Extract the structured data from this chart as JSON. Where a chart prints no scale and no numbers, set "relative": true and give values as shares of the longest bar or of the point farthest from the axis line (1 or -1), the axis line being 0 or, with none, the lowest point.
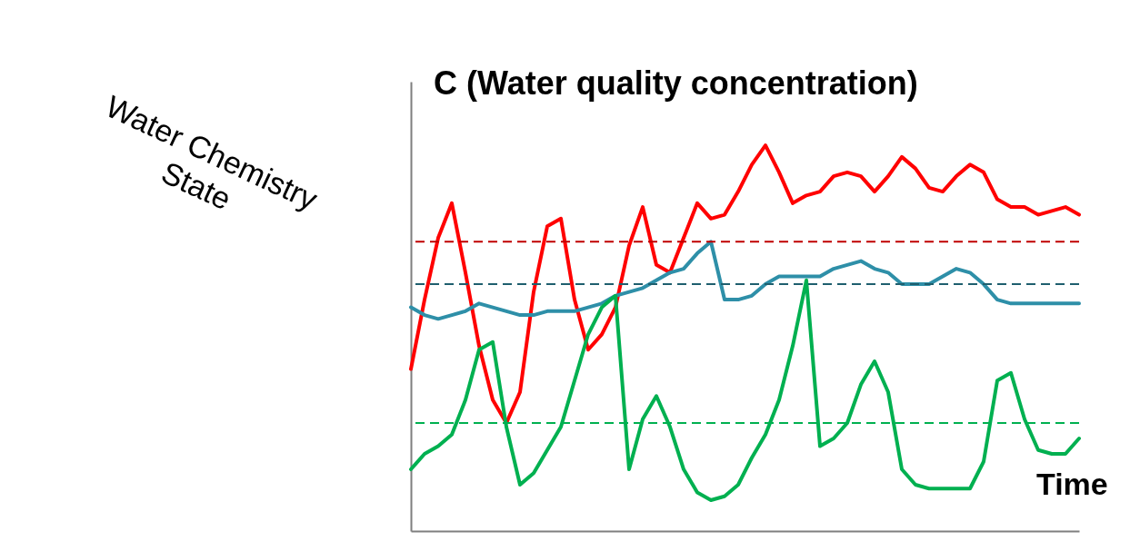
{
  "chart_data": {
    "type": "line",
    "relative": true,
    "ylabel": "C (Water quality concentration)",
    "xlabel": "Time",
    "categories": [
      null,
      null,
      null,
      null,
      null,
      null,
      null,
      null,
      null,
      null,
      null,
      null,
      null,
      null,
      null,
      null,
      null,
      null,
      null,
      null,
      null,
      null,
      null,
      null,
      null,
      null,
      null,
      null,
      null,
      null,
      null,
      null,
      null,
      null,
      null,
      null,
      null,
      null,
      null,
      null,
      null,
      null,
      null,
      null,
      null,
      null,
      null,
      null,
      null,
      null
    ],
    "series": [
      {
        "color": "#ff0000",
        "values": [
          0.42,
          0.6,
          0.76,
          0.85,
          0.67,
          0.48,
          0.34,
          0.28,
          0.36,
          0.62,
          0.79,
          0.81,
          0.6,
          0.47,
          0.51,
          0.58,
          0.74,
          0.84,
          0.69,
          0.67,
          0.76,
          0.85,
          0.81,
          0.82,
          0.88,
          0.95,
          1.0,
          0.93,
          0.85,
          0.87,
          0.88,
          0.92,
          0.93,
          0.92,
          0.88,
          0.92,
          0.97,
          0.94,
          0.89,
          0.88,
          0.92,
          0.95,
          0.93,
          0.86,
          0.84,
          0.84,
          0.82,
          0.83,
          0.84,
          0.82
        ]
      },
      {
        "color": "#2e8fa8",
        "values": [
          0.58,
          0.56,
          0.55,
          0.56,
          0.57,
          0.59,
          0.58,
          0.57,
          0.56,
          0.56,
          0.57,
          0.57,
          0.57,
          0.58,
          0.59,
          0.61,
          0.62,
          0.63,
          0.65,
          0.67,
          0.68,
          0.72,
          0.75,
          0.6,
          0.6,
          0.61,
          0.64,
          0.66,
          0.66,
          0.66,
          0.66,
          0.68,
          0.69,
          0.7,
          0.68,
          0.67,
          0.64,
          0.64,
          0.64,
          0.66,
          0.68,
          0.67,
          0.64,
          0.6,
          0.59,
          0.59,
          0.59,
          0.59,
          0.59,
          0.59
        ]
      },
      {
        "color": "#00b050",
        "values": [
          0.16,
          0.2,
          0.22,
          0.25,
          0.34,
          0.47,
          0.49,
          0.27,
          0.12,
          0.15,
          0.21,
          0.27,
          0.39,
          0.51,
          0.58,
          0.61,
          0.16,
          0.29,
          0.35,
          0.27,
          0.16,
          0.1,
          0.08,
          0.09,
          0.12,
          0.19,
          0.25,
          0.34,
          0.48,
          0.65,
          0.22,
          0.24,
          0.28,
          0.38,
          0.44,
          0.36,
          0.16,
          0.12,
          0.11,
          0.11,
          0.11,
          0.11,
          0.18,
          0.39,
          0.41,
          0.29,
          0.21,
          0.2,
          0.2,
          0.24
        ]
      }
    ],
    "ref_lines": [
      {
        "axis": "y",
        "value": 0.75,
        "color": "#c00000",
        "line_style": "dashed"
      },
      {
        "axis": "y",
        "value": 0.64,
        "color": "#1f5f6e",
        "line_style": "dashed"
      },
      {
        "axis": "y",
        "value": 0.28,
        "color": "#00b050",
        "line_style": "dashed"
      }
    ],
    "annotations": [
      "Water Chemistry State"
    ],
    "grid": false,
    "line_style": "solid",
    "marker": "none"
  }
}
